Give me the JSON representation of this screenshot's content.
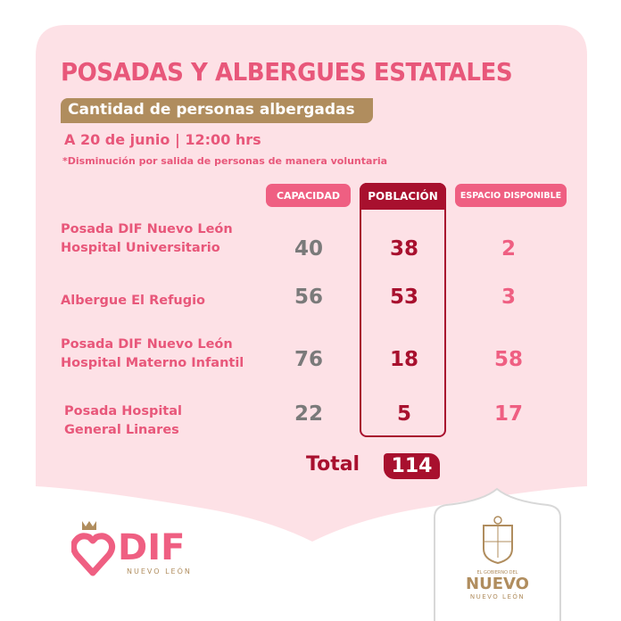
{
  "title": "POSADAS Y ALBERGUES ESTATALES",
  "subtitle": "Cantidad de personas albergadas",
  "date": "A 20 de junio | 12:00 hrs",
  "note": "*Disminución por salida de personas de manera voluntaria",
  "headers": {
    "capacidad": "CAPACIDAD",
    "poblacion": "POBLACIÓN",
    "espacio": "ESPACIO DISPONIBLE"
  },
  "rows": [
    {
      "name1": "Posada DIF Nuevo León",
      "name2": "Hospital Universitario",
      "capacidad": "40",
      "poblacion": "38",
      "espacio": "2"
    },
    {
      "name1": "Albergue El Refugio",
      "name2": "",
      "capacidad": "56",
      "poblacion": "53",
      "espacio": "3"
    },
    {
      "name1": "Posada DIF Nuevo León",
      "name2": "Hospital Materno Infantil",
      "capacidad": "76",
      "poblacion": "18",
      "espacio": "58"
    },
    {
      "name1": "Posada Hospital",
      "name2": "General Linares",
      "capacidad": "22",
      "poblacion": "5",
      "espacio": "17"
    }
  ],
  "total": {
    "label": "Total",
    "value": "114"
  },
  "logos": {
    "dif": "DIF",
    "dif_sub": "NUEVO LEÓN",
    "gob_top": "EL GOBIERNO DEL",
    "gob_main": "NUEVO",
    "gob_sub": "NUEVO LEÓN"
  },
  "colors": {
    "pink": "#e8577a",
    "card": "#fde1e6",
    "gold": "#b08d5e",
    "dark_red": "#a8102e"
  }
}
